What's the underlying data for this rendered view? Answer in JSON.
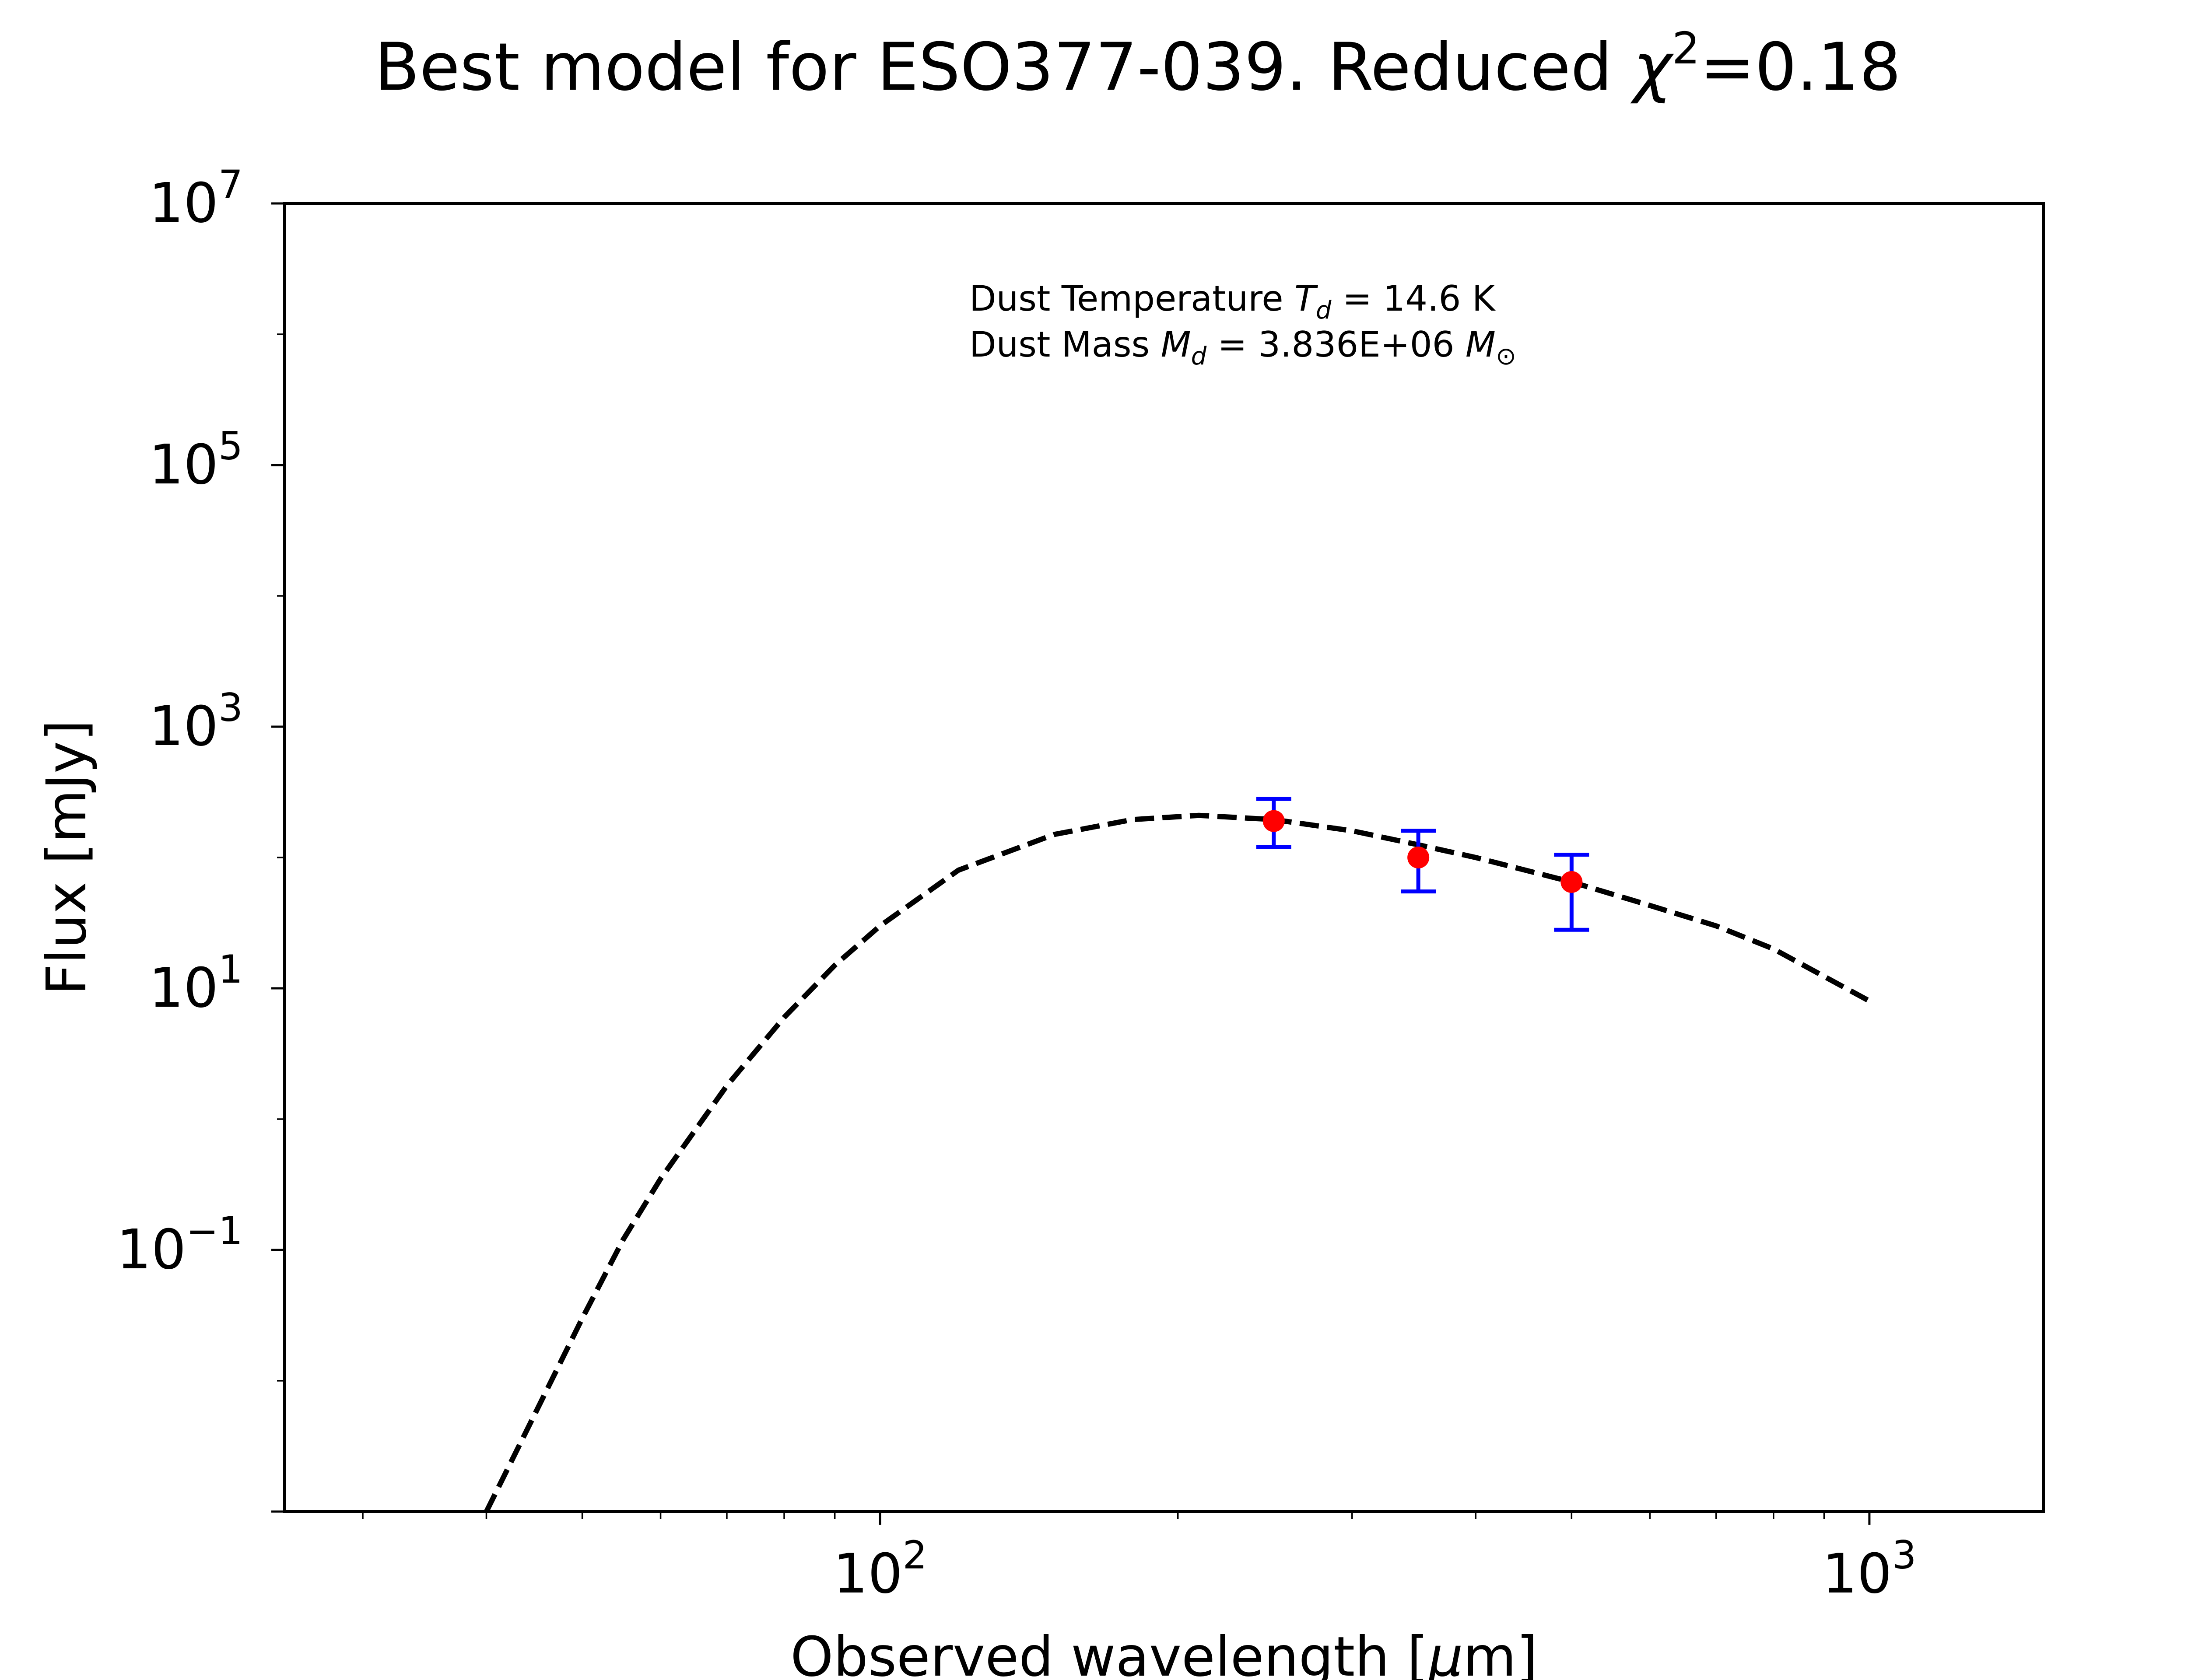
{
  "chart_data": {
    "type": "scatter",
    "title": {
      "prefix": "Best model for ESO377-039. Reduced ",
      "symbol": "χ",
      "superscript": "2",
      "suffix": "=0.18"
    },
    "xlabel": {
      "prefix": "Observed wavelength [",
      "mu": "μ",
      "suffix": "m]"
    },
    "ylabel": "Flux [mJy]",
    "xscale": "log",
    "yscale": "log",
    "xlim": [
      25,
      1500
    ],
    "ylim": [
      0.001,
      10000000
    ],
    "grid": false,
    "x_ticks": [
      {
        "value": 100,
        "base": "10",
        "exp": "2"
      },
      {
        "value": 1000,
        "base": "10",
        "exp": "3"
      }
    ],
    "y_ticks": [
      {
        "value": 0.1,
        "base": "10",
        "exp": "−1"
      },
      {
        "value": 10,
        "base": "10",
        "exp": "1"
      },
      {
        "value": 1000,
        "base": "10",
        "exp": "3"
      },
      {
        "value": 100000,
        "base": "10",
        "exp": "5"
      },
      {
        "value": 10000000,
        "base": "10",
        "exp": "7"
      }
    ],
    "annotation": {
      "temperature": {
        "prefix": "Dust Temperature ",
        "sym": "T",
        "sub": "d",
        "suffix": " = 14.6 K"
      },
      "mass": {
        "prefix": "Dust Mass ",
        "sym": "M",
        "sub": "d",
        "middle": " = 3.836E+06 ",
        "sym2": "M",
        "sub2": "⊙"
      }
    },
    "model_curve": {
      "style": "dashed",
      "color": "#000000",
      "x": [
        40,
        45,
        50,
        55,
        60,
        70,
        80,
        90,
        100,
        120,
        150,
        180,
        210,
        250,
        300,
        350,
        400,
        500,
        600,
        700,
        800,
        1000
      ],
      "y": [
        0.001,
        0.006,
        0.03,
        0.12,
        0.35,
        1.8,
        6,
        15,
        30,
        80,
        150,
        195,
        210,
        195,
        160,
        125,
        100,
        65,
        43,
        30,
        20,
        8
      ]
    },
    "observations": {
      "marker_color": "#ff0000",
      "errorbar_color": "#0000ff",
      "points": [
        {
          "x": 250,
          "y": 190,
          "ylow": 120,
          "yhigh": 280
        },
        {
          "x": 350,
          "y": 100,
          "ylow": 55,
          "yhigh": 160
        },
        {
          "x": 500,
          "y": 65,
          "ylow": 28,
          "yhigh": 105
        }
      ]
    }
  }
}
